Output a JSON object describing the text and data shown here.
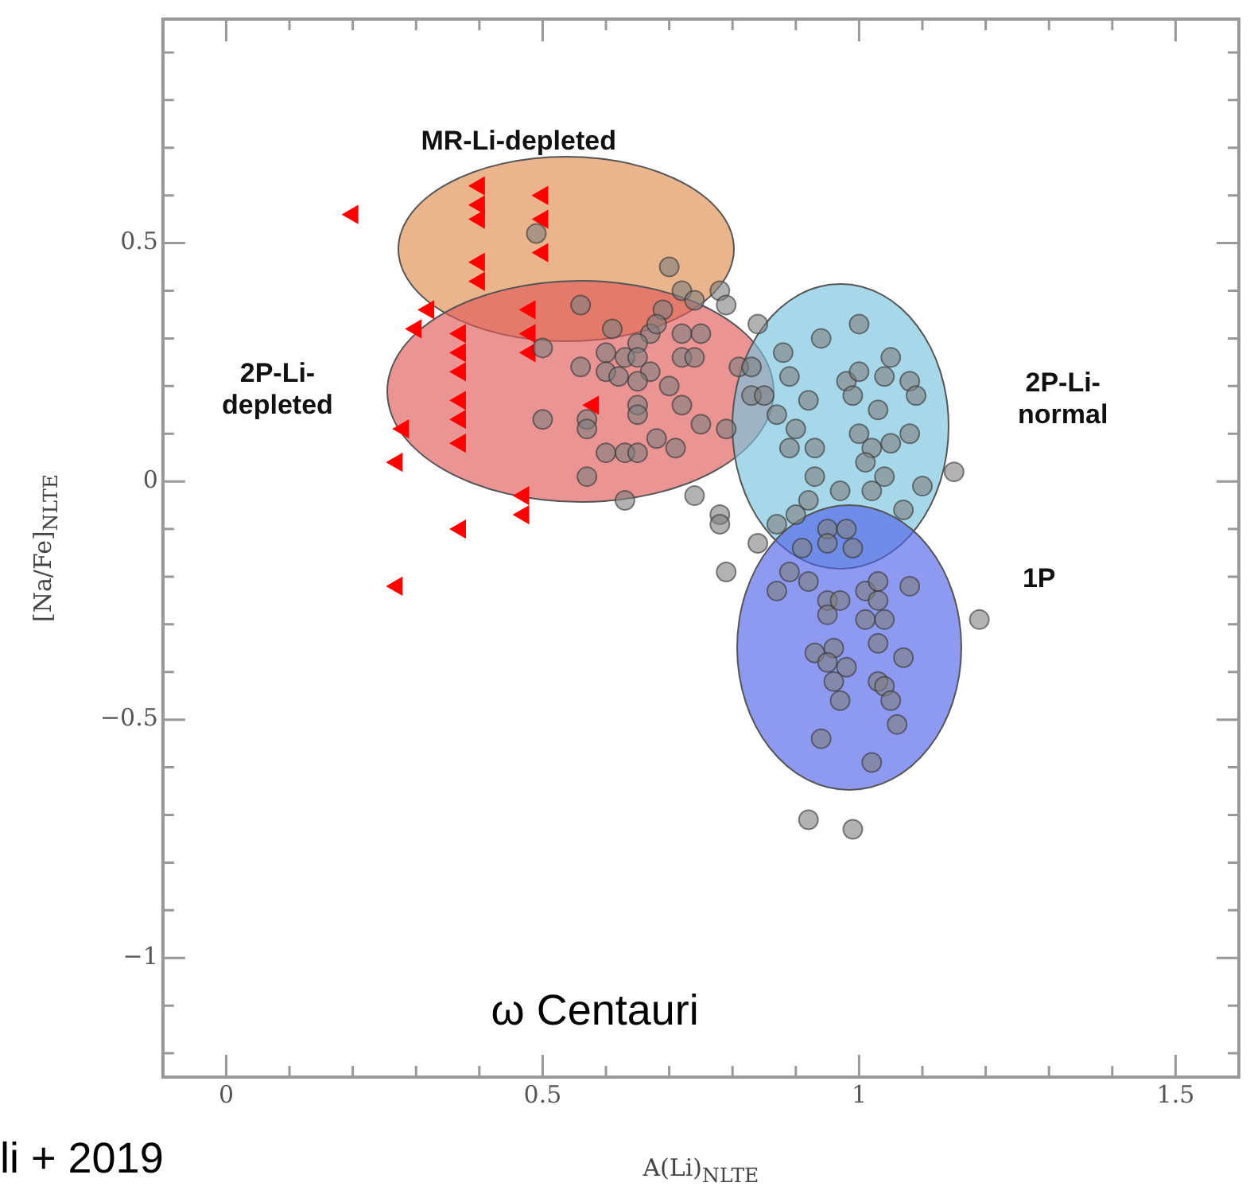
{
  "chart_data": {
    "type": "scatter",
    "xlabel": "A(Li)$_{NLTE}$",
    "ylabel": "[Na/Fe]$_{NLTE}$",
    "xlim": [
      -0.1,
      1.6
    ],
    "ylim": [
      -1.25,
      0.97
    ],
    "xticks": [
      {
        "value": -0.1,
        "label": null
      },
      0,
      {
        "value": 0.1,
        "label": null
      },
      {
        "value": 0.2,
        "label": null
      },
      {
        "value": 0.3,
        "label": null
      },
      {
        "value": 0.4,
        "label": null
      },
      0.5,
      {
        "value": 0.6,
        "label": null
      },
      {
        "value": 0.7,
        "label": null
      },
      {
        "value": 0.8,
        "label": null
      },
      {
        "value": 0.9,
        "label": null
      },
      1,
      {
        "value": 1.1,
        "label": null
      },
      {
        "value": 1.2,
        "label": null
      },
      {
        "value": 1.3,
        "label": null
      },
      {
        "value": 1.4,
        "label": null
      },
      1.5
    ],
    "yticks": [
      {
        "value": -1.2,
        "label": null
      },
      {
        "value": -1.1,
        "label": null
      },
      -1,
      {
        "value": -0.9,
        "label": null
      },
      {
        "value": -0.8,
        "label": null
      },
      {
        "value": -0.7,
        "label": null
      },
      {
        "value": -0.6,
        "label": null
      },
      -0.5,
      {
        "value": -0.4,
        "label": null
      },
      {
        "value": -0.3,
        "label": null
      },
      {
        "value": -0.2,
        "label": null
      },
      {
        "value": -0.1,
        "label": null
      },
      0,
      {
        "value": 0.1,
        "label": null
      },
      {
        "value": 0.2,
        "label": null
      },
      {
        "value": 0.3,
        "label": null
      },
      {
        "value": 0.4,
        "label": null
      },
      0.5,
      {
        "value": 0.6,
        "label": null
      },
      {
        "value": 0.7,
        "label": null
      },
      {
        "value": 0.8,
        "label": null
      },
      {
        "value": 0.9,
        "label": null
      }
    ],
    "grid": false,
    "legend": false,
    "annotations": [
      "MR-Li-depleted",
      "2P-Li-depleted",
      "2P-Li-normal",
      "1P",
      "ω Centauri",
      "li + 2019"
    ],
    "series": [
      {
        "color": "#7f7f7f",
        "marker": "circle",
        "x": [
          0.49,
          0.7,
          0.56,
          0.72,
          0.78,
          0.79,
          0.74,
          0.69,
          0.84,
          0.5,
          0.61,
          0.67,
          0.68,
          0.65,
          0.72,
          0.75,
          0.56,
          0.6,
          0.63,
          0.65,
          0.6,
          0.62,
          0.67,
          0.72,
          0.74,
          0.81,
          0.83,
          0.65,
          0.7,
          0.83,
          0.85,
          0.72,
          0.65,
          0.65,
          0.5,
          0.57,
          0.57,
          0.75,
          0.79,
          0.68,
          0.6,
          0.63,
          0.65,
          0.71,
          0.57,
          0.63,
          0.74,
          0.78,
          0.78,
          0.84,
          0.79,
          1.0,
          0.94,
          0.88,
          1.05,
          0.89,
          0.92,
          0.98,
          1.0,
          1.04,
          1.08,
          1.09,
          0.99,
          1.03,
          0.87,
          0.9,
          0.89,
          0.93,
          1.0,
          1.02,
          1.01,
          1.05,
          1.08,
          1.15,
          0.93,
          1.04,
          1.1,
          0.97,
          1.02,
          0.92,
          1.07,
          0.87,
          0.9,
          0.95,
          0.98,
          0.95,
          0.99,
          0.91,
          0.87,
          0.89,
          0.92,
          0.95,
          0.95,
          0.97,
          1.01,
          1.03,
          1.03,
          1.01,
          1.04,
          1.08,
          1.19,
          0.93,
          0.96,
          0.95,
          0.98,
          0.96,
          1.03,
          1.07,
          1.03,
          1.04,
          1.05,
          0.97,
          1.06,
          0.94,
          1.02,
          0.92,
          0.99
        ],
        "values": [
          0.52,
          0.45,
          0.37,
          0.4,
          0.4,
          0.37,
          0.38,
          0.36,
          0.33,
          0.28,
          0.32,
          0.31,
          0.33,
          0.29,
          0.31,
          0.31,
          0.24,
          0.27,
          0.26,
          0.26,
          0.23,
          0.22,
          0.23,
          0.26,
          0.26,
          0.24,
          0.24,
          0.21,
          0.2,
          0.18,
          0.18,
          0.16,
          0.16,
          0.14,
          0.13,
          0.13,
          0.11,
          0.12,
          0.11,
          0.09,
          0.06,
          0.06,
          0.06,
          0.07,
          0.01,
          -0.04,
          -0.03,
          -0.07,
          -0.09,
          -0.13,
          -0.19,
          0.33,
          0.3,
          0.27,
          0.26,
          0.22,
          0.17,
          0.21,
          0.23,
          0.22,
          0.21,
          0.18,
          0.18,
          0.15,
          0.14,
          0.11,
          0.07,
          0.07,
          0.1,
          0.07,
          0.04,
          0.08,
          0.1,
          0.02,
          0.01,
          0.01,
          -0.01,
          -0.02,
          -0.02,
          -0.04,
          -0.06,
          -0.09,
          -0.07,
          -0.1,
          -0.1,
          -0.13,
          -0.14,
          -0.14,
          -0.23,
          -0.19,
          -0.21,
          -0.25,
          -0.28,
          -0.25,
          -0.23,
          -0.21,
          -0.25,
          -0.29,
          -0.29,
          -0.22,
          -0.29,
          -0.36,
          -0.35,
          -0.38,
          -0.39,
          -0.42,
          -0.34,
          -0.37,
          -0.42,
          -0.43,
          -0.46,
          -0.46,
          -0.51,
          -0.54,
          -0.59,
          -0.71,
          -0.73
        ]
      },
      {
        "color": "#ff0000",
        "marker": "triangle",
        "x": [
          0.2,
          0.4,
          0.5,
          0.4,
          0.5,
          0.4,
          0.4,
          0.5,
          0.4,
          0.32,
          0.48,
          0.3,
          0.37,
          0.48,
          0.37,
          0.48,
          0.37,
          0.58,
          0.37,
          0.37,
          0.28,
          0.37,
          0.27,
          0.47,
          0.47,
          0.37,
          0.27
        ],
        "values": [
          0.56,
          0.62,
          0.6,
          0.58,
          0.55,
          0.55,
          0.46,
          0.48,
          0.42,
          0.36,
          0.36,
          0.32,
          0.31,
          0.31,
          0.27,
          0.27,
          0.23,
          0.16,
          0.17,
          0.13,
          0.11,
          0.08,
          0.04,
          -0.03,
          -0.07,
          -0.1,
          -0.22
        ]
      }
    ]
  }
}
